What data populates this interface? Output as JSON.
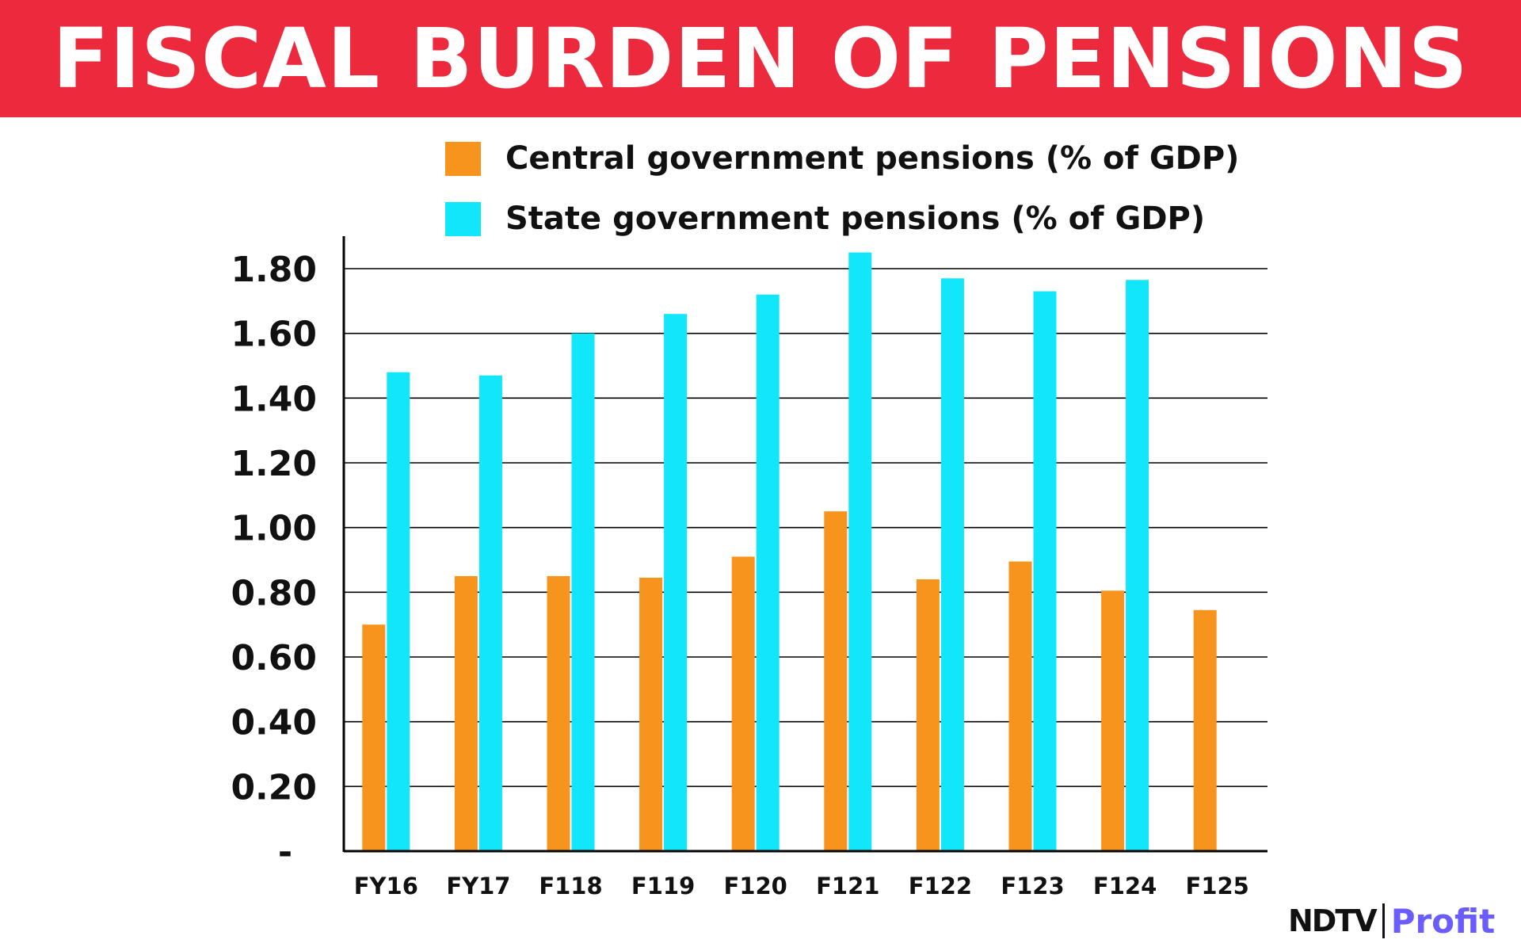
{
  "title": "FISCAL BURDEN OF PENSIONS",
  "legend": [
    {
      "label": "Central government pensions (% of GDP)",
      "color": "#f7941d"
    },
    {
      "label": "State government pensions (% of GDP)",
      "color": "#12e6fb"
    }
  ],
  "brand": {
    "ndtv": "NDTV",
    "profit": "Profit"
  },
  "chart_data": {
    "type": "bar",
    "title": "FISCAL BURDEN OF PENSIONS",
    "xlabel": "",
    "ylabel": "",
    "ylim": [
      0,
      1.9
    ],
    "grid": true,
    "legend_position": "top",
    "categories": [
      "FY16",
      "FY17",
      "F118",
      "F119",
      "F120",
      "F121",
      "F122",
      "F123",
      "F124",
      "F125"
    ],
    "y_ticks": [
      0,
      0.2,
      0.4,
      0.6,
      0.8,
      1.0,
      1.2,
      1.4,
      1.6,
      1.8
    ],
    "y_tick_labels": [
      "-",
      "0.20",
      "0.40",
      "0.60",
      "0.80",
      "1.00",
      "1.20",
      "1.40",
      "1.60",
      "1.80"
    ],
    "series": [
      {
        "name": "Central government pensions (% of GDP)",
        "color": "#f7941d",
        "values": [
          0.7,
          0.85,
          0.85,
          0.845,
          0.91,
          1.05,
          0.84,
          0.895,
          0.805,
          0.745
        ]
      },
      {
        "name": "State government pensions (% of GDP)",
        "color": "#12e6fb",
        "values": [
          1.48,
          1.47,
          1.6,
          1.66,
          1.72,
          1.85,
          1.77,
          1.73,
          1.765,
          null
        ]
      }
    ]
  }
}
